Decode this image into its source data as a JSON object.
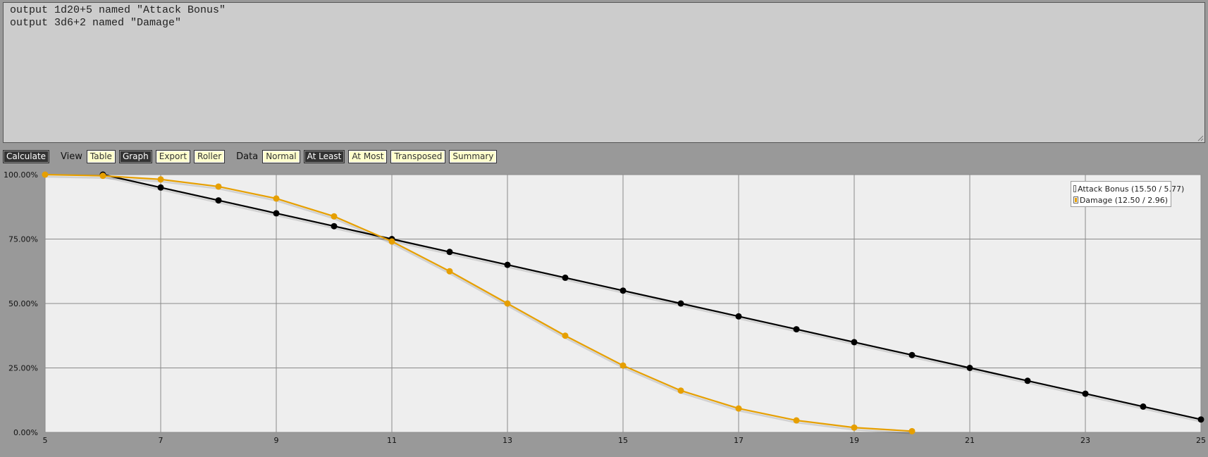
{
  "editor": {
    "code": "output 1d20+5 named \"Attack Bonus\"\noutput 3d6+2 named \"Damage\""
  },
  "toolbar": {
    "calculate_label": "Calculate",
    "view_label": "View",
    "view_buttons": [
      {
        "label": "Table",
        "active": false
      },
      {
        "label": "Graph",
        "active": true
      },
      {
        "label": "Export",
        "active": false
      },
      {
        "label": "Roller",
        "active": false
      }
    ],
    "data_label": "Data",
    "data_buttons": [
      {
        "label": "Normal",
        "active": false
      },
      {
        "label": "At Least",
        "active": true
      },
      {
        "label": "At Most",
        "active": false
      },
      {
        "label": "Transposed",
        "active": false
      },
      {
        "label": "Summary",
        "active": false
      }
    ]
  },
  "colors": {
    "attack": "#000000",
    "damage": "#e69f00",
    "plot_bg": "#eeeeee",
    "grid": "#8a8a8a"
  },
  "chart_data": {
    "type": "line",
    "title": "",
    "xlabel": "",
    "ylabel": "",
    "xlim": [
      5,
      25
    ],
    "ylim": [
      0,
      100
    ],
    "x_ticks": [
      5,
      7,
      9,
      11,
      13,
      15,
      17,
      19,
      21,
      23,
      25
    ],
    "y_ticks": [
      "0.00%",
      "25.00%",
      "50.00%",
      "75.00%",
      "100.00%"
    ],
    "y_tick_values": [
      0,
      25,
      50,
      75,
      100
    ],
    "grid": true,
    "legend_position": "top-right",
    "series": [
      {
        "name": "Attack Bonus (15.50 / 5.77)",
        "color": "#000000",
        "x": [
          6,
          7,
          8,
          9,
          10,
          11,
          12,
          13,
          14,
          15,
          16,
          17,
          18,
          19,
          20,
          21,
          22,
          23,
          24,
          25
        ],
        "y": [
          100,
          95,
          90,
          85,
          80,
          75,
          70,
          65,
          60,
          55,
          50,
          45,
          40,
          35,
          30,
          25,
          20,
          15,
          10,
          5
        ]
      },
      {
        "name": "Damage (12.50 / 2.96)",
        "color": "#e69f00",
        "x": [
          5,
          6,
          7,
          8,
          9,
          10,
          11,
          12,
          13,
          14,
          15,
          16,
          17,
          18,
          19,
          20
        ],
        "y": [
          100,
          99.54,
          98.15,
          95.37,
          90.74,
          83.8,
          74.07,
          62.5,
          50,
          37.5,
          25.93,
          16.2,
          9.26,
          4.63,
          1.85,
          0.46
        ]
      }
    ]
  }
}
